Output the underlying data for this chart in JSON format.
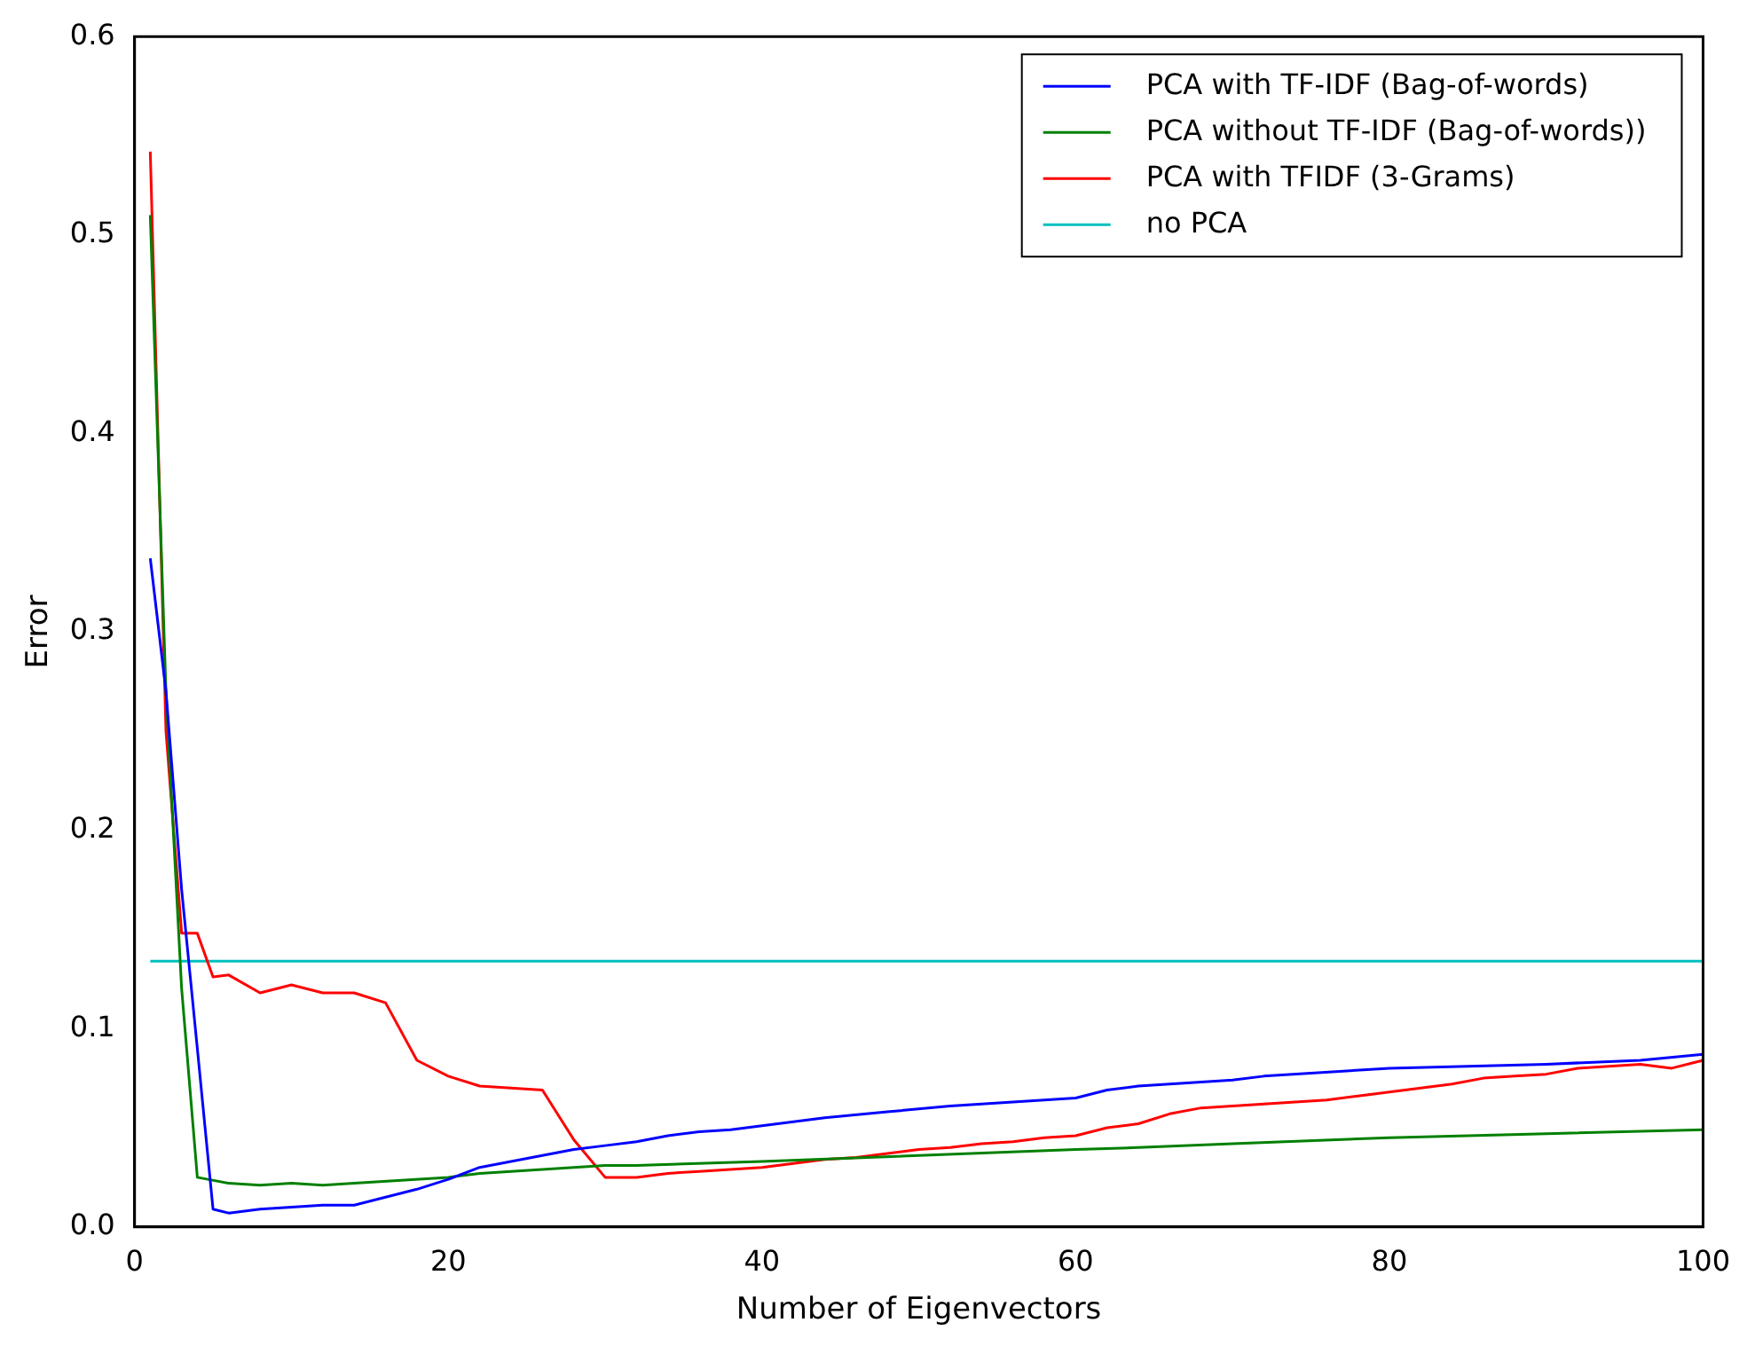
{
  "chart_data": {
    "type": "line",
    "xlabel": "Number of Eigenvectors",
    "ylabel": "Error",
    "xlim": [
      0,
      100
    ],
    "xticks": [
      0,
      20,
      40,
      60,
      80,
      100
    ],
    "ylim": [
      0,
      0.6
    ],
    "yticks": [
      {
        "value": 0,
        "label": "0.0"
      },
      {
        "value": 0.1,
        "label": "0.1"
      },
      {
        "value": 0.2,
        "label": "0.2"
      },
      {
        "value": 0.3,
        "label": "0.3"
      },
      {
        "value": 0.4,
        "label": "0.4"
      },
      {
        "value": 0.5,
        "label": "0.5"
      },
      {
        "value": 0.6,
        "label": "0.6"
      }
    ],
    "grid": false,
    "legend": "top right",
    "marker": "none",
    "line_style": "solid",
    "series": [
      {
        "name": "PCA with TF-IDF (Bag-of-words)",
        "color": "#0000ff",
        "x": [
          1,
          2,
          3,
          4,
          5,
          6,
          8,
          10,
          12,
          14,
          16,
          18,
          20,
          22,
          24,
          26,
          28,
          30,
          32,
          34,
          36,
          38,
          40,
          44,
          48,
          52,
          56,
          60,
          62,
          64,
          70,
          72,
          80,
          90,
          96,
          100
        ],
        "values": [
          0.337,
          0.27,
          0.17,
          0.09,
          0.009,
          0.007,
          0.009,
          0.01,
          0.011,
          0.011,
          0.015,
          0.019,
          0.024,
          0.03,
          0.033,
          0.036,
          0.039,
          0.041,
          0.043,
          0.046,
          0.048,
          0.049,
          0.051,
          0.055,
          0.058,
          0.061,
          0.063,
          0.065,
          0.069,
          0.071,
          0.074,
          0.076,
          0.08,
          0.082,
          0.084,
          0.087
        ]
      },
      {
        "name": "PCA without TF-IDF (Bag-of-words))",
        "color": "#008000",
        "x": [
          1,
          2,
          3,
          4,
          6,
          8,
          10,
          12,
          14,
          20,
          22,
          30,
          32,
          40,
          50,
          60,
          64,
          70,
          80,
          90,
          100
        ],
        "values": [
          0.51,
          0.27,
          0.12,
          0.025,
          0.022,
          0.021,
          0.022,
          0.021,
          0.022,
          0.025,
          0.027,
          0.031,
          0.031,
          0.033,
          0.036,
          0.039,
          0.04,
          0.042,
          0.045,
          0.047,
          0.049
        ]
      },
      {
        "name": "PCA with TFIDF (3-Grams)",
        "color": "#ff0000",
        "x": [
          1,
          2,
          3,
          4,
          5,
          6,
          8,
          10,
          12,
          14,
          16,
          18,
          20,
          22,
          24,
          26,
          28,
          30,
          32,
          34,
          36,
          38,
          40,
          42,
          44,
          46,
          48,
          50,
          52,
          54,
          56,
          58,
          60,
          62,
          64,
          66,
          68,
          70,
          72,
          74,
          76,
          78,
          80,
          82,
          84,
          86,
          88,
          90,
          92,
          94,
          96,
          98,
          100
        ],
        "values": [
          0.542,
          0.25,
          0.148,
          0.148,
          0.126,
          0.127,
          0.118,
          0.122,
          0.118,
          0.118,
          0.113,
          0.084,
          0.076,
          0.071,
          0.07,
          0.069,
          0.044,
          0.025,
          0.025,
          0.027,
          0.028,
          0.029,
          0.03,
          0.032,
          0.034,
          0.035,
          0.037,
          0.039,
          0.04,
          0.042,
          0.043,
          0.045,
          0.046,
          0.05,
          0.052,
          0.057,
          0.06,
          0.061,
          0.062,
          0.063,
          0.064,
          0.066,
          0.068,
          0.07,
          0.072,
          0.075,
          0.076,
          0.077,
          0.08,
          0.081,
          0.082,
          0.08,
          0.084
        ]
      },
      {
        "name": "no PCA",
        "color": "#00bfbf",
        "x": [
          1,
          100
        ],
        "values": [
          0.134,
          0.134
        ]
      }
    ]
  }
}
